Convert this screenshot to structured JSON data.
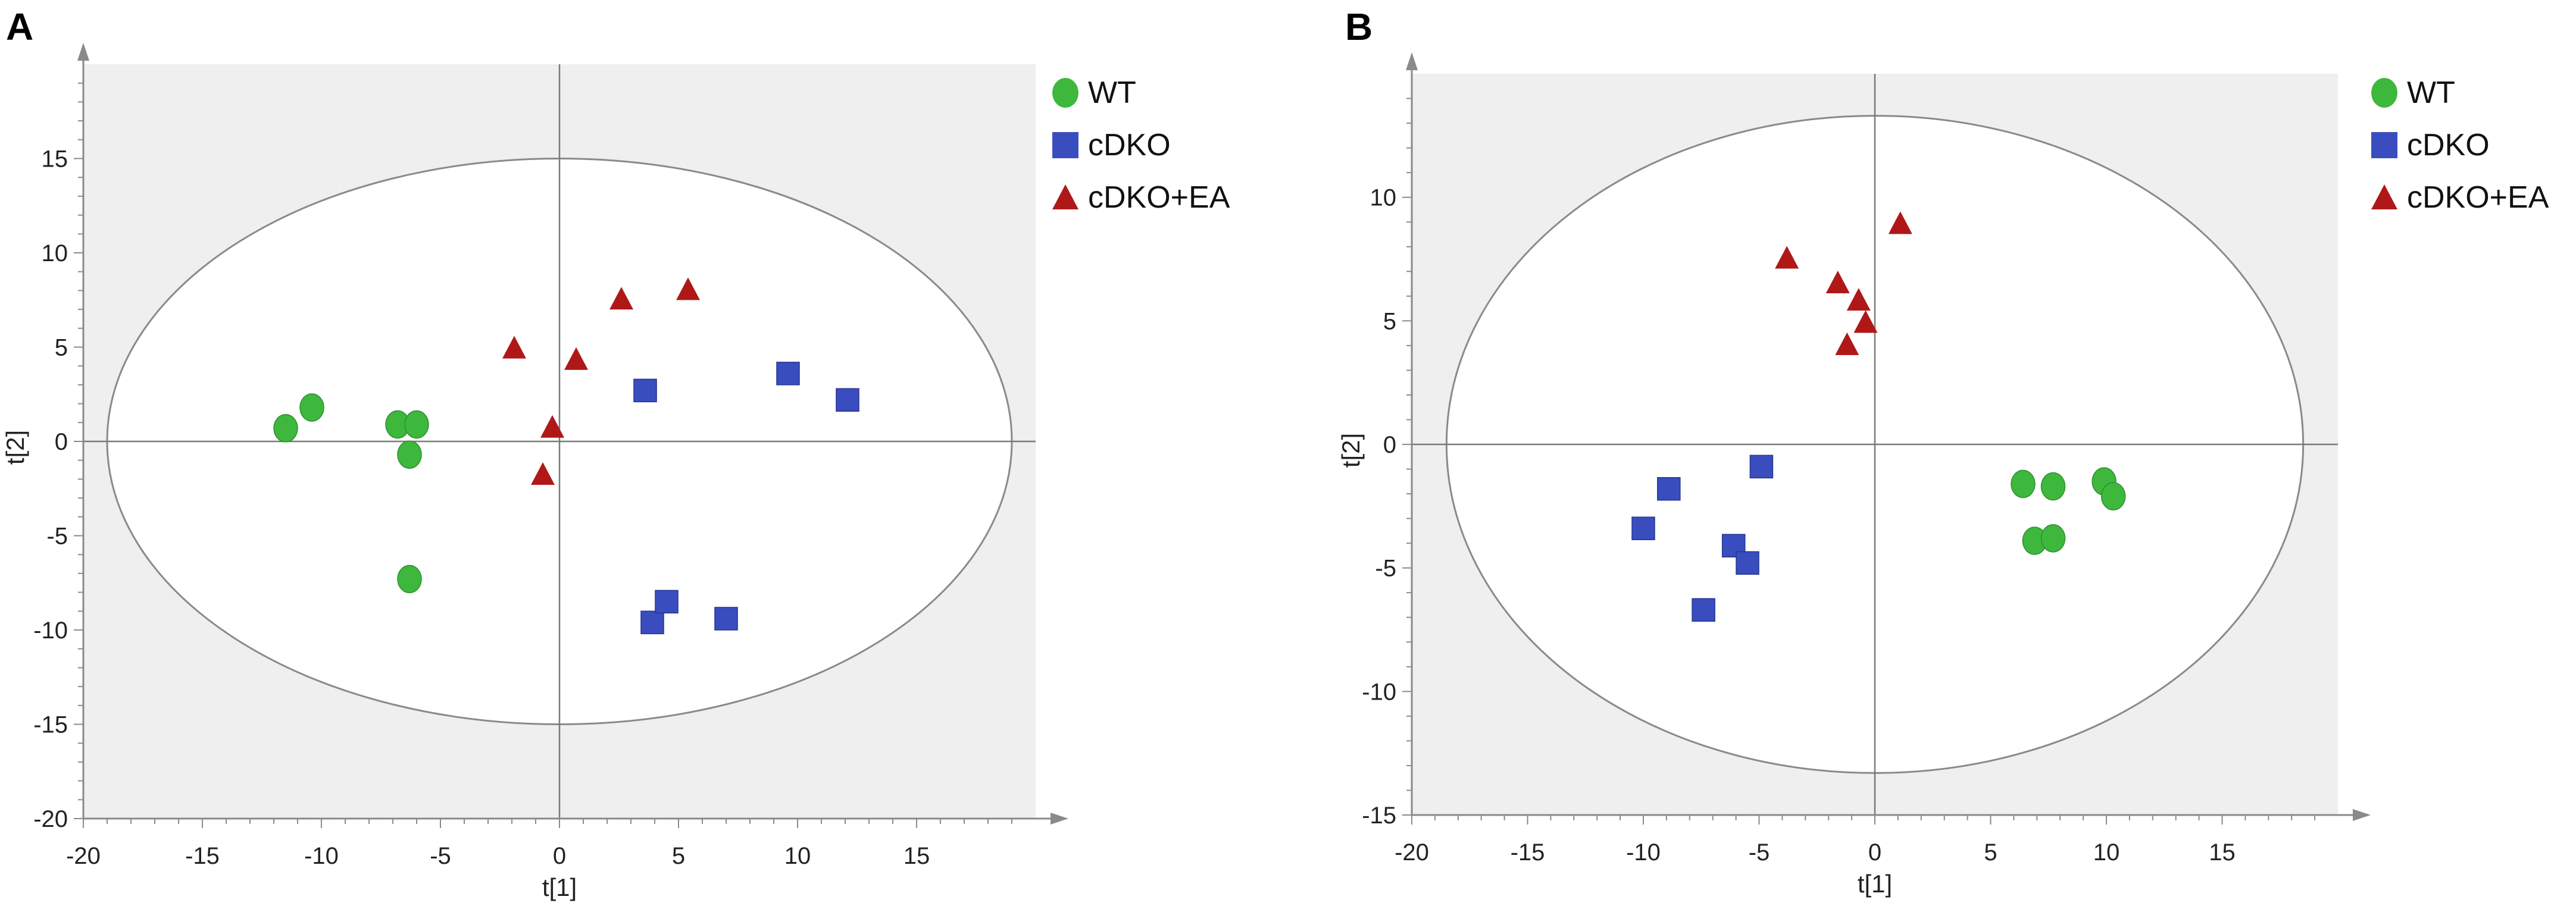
{
  "colors": {
    "WT": "#3db83d",
    "cDKO": "#3a4dbf",
    "cDKO+EA": "#b01818"
  },
  "chart_data": [
    {
      "panel": "A",
      "type": "scatter",
      "xlabel": "t[1]",
      "ylabel": "t[2]",
      "xlim": [
        -20,
        20
      ],
      "ylim": [
        -20,
        20
      ],
      "xticks": [
        -20,
        -15,
        -10,
        -5,
        0,
        5,
        10,
        15
      ],
      "yticks": [
        15,
        10,
        5,
        0,
        -5,
        -10,
        -15,
        -20
      ],
      "ellipse": {
        "rx": 19,
        "ry": 15
      },
      "legend": [
        "WT",
        "cDKO",
        "cDKO+EA"
      ],
      "series": [
        {
          "name": "WT",
          "marker": "circle",
          "x": [
            -11.5,
            -10.4,
            -6.8,
            -6.0,
            -6.3,
            -6.3
          ],
          "y": [
            0.7,
            1.8,
            0.9,
            0.9,
            -0.7,
            -7.3
          ]
        },
        {
          "name": "cDKO",
          "marker": "square",
          "x": [
            3.6,
            9.6,
            12.1,
            3.9,
            4.5,
            7.0
          ],
          "y": [
            2.7,
            3.6,
            2.2,
            -9.6,
            -8.5,
            -9.4
          ]
        },
        {
          "name": "cDKO+EA",
          "marker": "triangle",
          "x": [
            -1.9,
            0.7,
            2.6,
            5.4,
            -0.3,
            -0.7
          ],
          "y": [
            4.9,
            4.3,
            7.5,
            8.0,
            0.7,
            -1.8
          ]
        }
      ]
    },
    {
      "panel": "B",
      "type": "scatter",
      "xlabel": "t[1]",
      "ylabel": "t[2]",
      "xlim": [
        -20,
        20
      ],
      "ylim": [
        -15,
        15
      ],
      "xticks": [
        -20,
        -15,
        -10,
        -5,
        0,
        5,
        10,
        15
      ],
      "yticks": [
        10,
        5,
        0,
        -5,
        -10,
        -15
      ],
      "ellipse": {
        "rx": 18.5,
        "ry": 13.3
      },
      "legend": [
        "WT",
        "cDKO",
        "cDKO+EA"
      ],
      "series": [
        {
          "name": "WT",
          "marker": "circle",
          "x": [
            6.4,
            7.7,
            9.9,
            10.3,
            6.9,
            7.7
          ],
          "y": [
            -1.6,
            -1.7,
            -1.5,
            -2.1,
            -3.9,
            -3.8
          ]
        },
        {
          "name": "cDKO",
          "marker": "square",
          "x": [
            -8.9,
            -4.9,
            -10.0,
            -6.1,
            -5.5,
            -7.4
          ],
          "y": [
            -1.8,
            -0.9,
            -3.4,
            -4.1,
            -4.8,
            -6.7
          ]
        },
        {
          "name": "cDKO+EA",
          "marker": "triangle",
          "x": [
            -3.8,
            1.1,
            -1.6,
            -0.7,
            -0.4,
            -1.2
          ],
          "y": [
            7.5,
            8.9,
            6.5,
            5.8,
            4.9,
            4.0
          ]
        }
      ]
    }
  ]
}
